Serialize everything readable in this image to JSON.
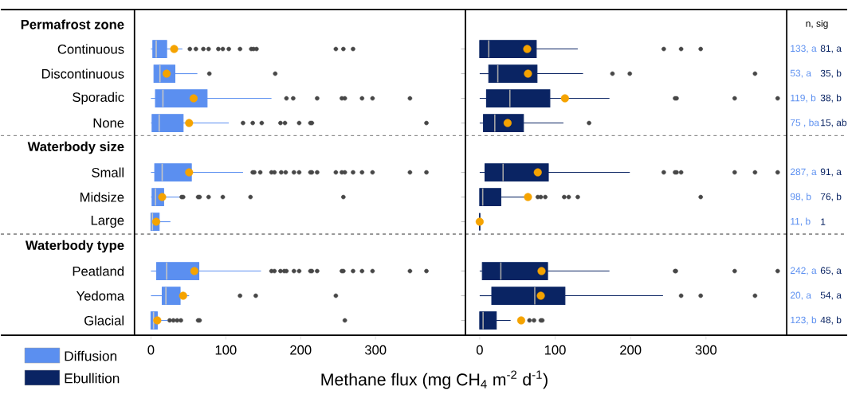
{
  "chart_data": [
    {
      "type": "box",
      "orientation": "horizontal",
      "xlabel": "Methane flux  (mg CH$_{4}$ m$^{-2}$ d$^{-1}$)",
      "legend": "bottom left",
      "categories": [
        "Permafrost zone",
        "Continuous",
        "Discontinuous",
        "Sporadic",
        "None",
        "Waterbody size",
        "Small",
        "Midsize",
        "Large",
        "Waterbody type",
        "Peatland",
        "Yedoma",
        "Glacial"
      ],
      "xlim": [
        -22,
        420
      ],
      "xticks": [
        0,
        100,
        200,
        300
      ],
      "series": [
        {
          "name": "Diffusion",
          "color": "#5b8ff0",
          "boxes": [
            null,
            {
              "low": 0,
              "q1": 2.5,
              "median": 7,
              "q3": 21,
              "high": 42,
              "mean": 31,
              "outliers": [
                52,
                60,
                70,
                77,
                90,
                96,
                104,
                119,
                134,
                137,
                141,
                247,
                257,
                270
              ]
            },
            {
              "low": 4,
              "q1": 4,
              "median": 12,
              "q3": 32,
              "high": 62,
              "mean": 21,
              "outliers": [
                78,
                166
              ]
            },
            {
              "low": 0,
              "q1": 6,
              "median": 16,
              "q3": 75,
              "high": 161,
              "mean": 57,
              "outliers": [
                181,
                190,
                222,
                255,
                259,
                282,
                296,
                346
              ]
            },
            {
              "low": 0,
              "q1": 1.5,
              "median": 11,
              "q3": 43,
              "high": 104,
              "mean": 51,
              "outliers": [
                123,
                136,
                148,
                173,
                179,
                198,
                213,
                215,
                368
              ]
            },
            null,
            {
              "low": 0,
              "q1": 5,
              "median": 15,
              "q3": 54,
              "high": 123,
              "mean": 51,
              "outliers": [
                136,
                138,
                146,
                161,
                165,
                174,
                180,
                191,
                198,
                213,
                215,
                222,
                247,
                255,
                259,
                270,
                282,
                296,
                346,
                368
              ]
            },
            {
              "low": 0,
              "q1": 1.5,
              "median": 6,
              "q3": 17,
              "high": 38,
              "mean": 15,
              "outliers": [
                41,
                43,
                63,
                65,
                77,
                96,
                133,
                257
              ]
            },
            {
              "low": 0,
              "q1": 0,
              "median": 2,
              "q3": 11,
              "high": 26,
              "mean": 7
            },
            null,
            {
              "low": 0,
              "q1": 7.5,
              "median": 21,
              "q3": 64,
              "high": 147,
              "mean": 58,
              "outliers": [
                161,
                165,
                173,
                178,
                181,
                191,
                198,
                213,
                215,
                222,
                255,
                257,
                270,
                282,
                296,
                346,
                368
              ]
            },
            {
              "low": 0,
              "q1": 15,
              "median": 20,
              "q3": 39,
              "high": 51,
              "mean": 43,
              "outliers": [
                119,
                140,
                247
              ]
            },
            {
              "low": 0,
              "q1": 0,
              "median": 3.5,
              "q3": 8.5,
              "high": 22,
              "mean": 8.5,
              "outliers": [
                25,
                30,
                35,
                40,
                63,
                65,
                259
              ]
            }
          ]
        }
      ],
      "annotations": [
        "133, a",
        "53, a",
        "119, b",
        "75 , ba",
        "287, a",
        "98, b",
        "11, b",
        "242, a",
        "20, a",
        "123, b"
      ]
    },
    {
      "type": "box",
      "orientation": "horizontal",
      "legend": "bottom left",
      "tick_labels": "x",
      "categories": [
        null,
        null,
        null,
        null,
        null,
        null,
        null,
        null,
        null,
        null,
        null,
        null,
        null
      ],
      "xlim": [
        -19,
        407
      ],
      "xticks": [
        0,
        100,
        200,
        300
      ],
      "series": [
        {
          "name": "Ebullition",
          "color": "#0a2463",
          "boxes": [
            null,
            {
              "low": 0,
              "q1": 0,
              "median": 12,
              "q3": 75,
              "high": 130,
              "mean": 63,
              "outliers": [
                244,
                267,
                293
              ]
            },
            {
              "low": 0,
              "q1": 12,
              "median": 24,
              "q3": 76,
              "high": 137,
              "mean": 64,
              "outliers": [
                176,
                199,
                365
              ]
            },
            {
              "low": 0,
              "q1": 9,
              "median": 40,
              "q3": 93,
              "high": 172,
              "mean": 113,
              "outliers": [
                259,
                261,
                338,
                395
              ]
            },
            {
              "low": 0,
              "q1": 5,
              "median": 20,
              "q3": 58,
              "high": 111,
              "mean": 37,
              "outliers": [
                145
              ]
            },
            null,
            {
              "low": 0,
              "q1": 7,
              "median": 31,
              "q3": 91,
              "high": 199,
              "mean": 77,
              "outliers": [
                244,
                259,
                261,
                267,
                338,
                365,
                395
              ]
            },
            {
              "low": 0,
              "q1": 0,
              "median": 4,
              "q3": 28,
              "high": 60,
              "mean": 64,
              "outliers": [
                77,
                81,
                87,
                112,
                118,
                130,
                293
              ]
            },
            {
              "low": 0,
              "q1": 0,
              "median": 0,
              "q3": 0,
              "high": 0,
              "mean": 0
            },
            null,
            {
              "low": 0,
              "q1": 3.5,
              "median": 28,
              "q3": 90,
              "high": 172,
              "mean": 82,
              "outliers": [
                259,
                260,
                338,
                395
              ]
            },
            {
              "low": 0,
              "q1": 16,
              "median": 73,
              "q3": 113,
              "high": 243,
              "mean": 81,
              "outliers": [
                267,
                293,
                365
              ]
            },
            {
              "low": 0,
              "q1": 0,
              "median": 4.5,
              "q3": 22,
              "high": 41,
              "mean": 55,
              "outliers": [
                66,
                72,
                81,
                83
              ]
            }
          ]
        }
      ],
      "annotations": [
        "81, a",
        "35, b",
        "38, b",
        "15, ab",
        "91, a",
        "76, b",
        "1",
        "65, a",
        "54, a",
        "48, b",
        "n, sig"
      ]
    }
  ]
}
